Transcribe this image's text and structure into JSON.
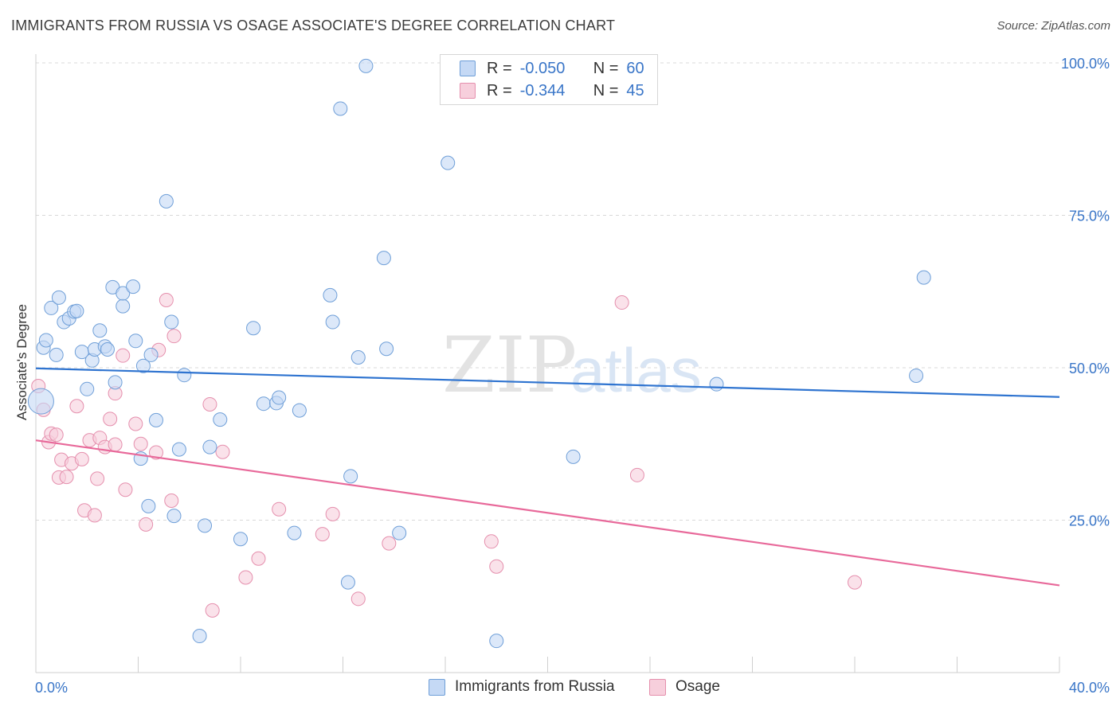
{
  "title": "IMMIGRANTS FROM RUSSIA VS OSAGE ASSOCIATE'S DEGREE CORRELATION CHART",
  "source": "Source: ZipAtlas.com",
  "watermark": {
    "zip": "ZIP",
    "atlas": "atlas"
  },
  "legend_top": {
    "rows": [
      {
        "r_label": "R =",
        "r_value": "-0.050",
        "n_label": "N =",
        "n_value": "60"
      },
      {
        "r_label": "R =",
        "r_value": "-0.344",
        "n_label": "N =",
        "n_value": "45"
      }
    ]
  },
  "legend_bottom": {
    "series1": "Immigrants from Russia",
    "series2": "Osage"
  },
  "colors": {
    "series1_fill": "#c5d9f5",
    "series1_stroke": "#6f9fd8",
    "series1_line": "#2f74d0",
    "series2_fill": "#f7cfdc",
    "series2_stroke": "#e58fad",
    "series2_line": "#e8699a",
    "tick_label": "#3a76c8",
    "grid": "#d8d8d8"
  },
  "chart_data": {
    "type": "scatter",
    "title": "IMMIGRANTS FROM RUSSIA VS OSAGE ASSOCIATE'S DEGREE CORRELATION CHART",
    "xlabel": "",
    "ylabel": "Associate's Degree",
    "xlim": [
      0,
      40
    ],
    "ylim": [
      0,
      100
    ],
    "x_tick_labels": [
      "0.0%",
      "40.0%"
    ],
    "y_ticks": [
      25,
      50,
      75,
      100
    ],
    "y_tick_labels": [
      "25.0%",
      "50.0%",
      "75.0%",
      "100.0%"
    ],
    "series": [
      {
        "name": "Immigrants from Russia",
        "trend": {
          "x": [
            0,
            40
          ],
          "y": [
            49.9,
            45.2
          ]
        },
        "points": [
          [
            0.3,
            53.3
          ],
          [
            0.4,
            54.5
          ],
          [
            0.6,
            59.8
          ],
          [
            0.8,
            52.1
          ],
          [
            0.9,
            61.5
          ],
          [
            1.1,
            57.5
          ],
          [
            1.3,
            58.1
          ],
          [
            1.5,
            59.2
          ],
          [
            1.6,
            59.3
          ],
          [
            1.8,
            52.6
          ],
          [
            2.0,
            46.5
          ],
          [
            2.2,
            51.2
          ],
          [
            2.3,
            53.0
          ],
          [
            2.5,
            56.1
          ],
          [
            2.7,
            53.5
          ],
          [
            2.8,
            53.0
          ],
          [
            3.0,
            63.2
          ],
          [
            3.1,
            47.6
          ],
          [
            3.4,
            60.1
          ],
          [
            3.4,
            62.2
          ],
          [
            3.8,
            63.3
          ],
          [
            3.9,
            54.4
          ],
          [
            4.1,
            35.1
          ],
          [
            4.2,
            50.3
          ],
          [
            4.4,
            27.3
          ],
          [
            4.5,
            52.1
          ],
          [
            4.7,
            41.4
          ],
          [
            5.1,
            77.3
          ],
          [
            5.3,
            57.5
          ],
          [
            5.4,
            25.7
          ],
          [
            5.6,
            36.6
          ],
          [
            5.8,
            48.8
          ],
          [
            6.4,
            6.0
          ],
          [
            6.6,
            24.1
          ],
          [
            6.8,
            37.0
          ],
          [
            7.2,
            41.5
          ],
          [
            8.0,
            21.9
          ],
          [
            8.5,
            56.5
          ],
          [
            8.9,
            44.1
          ],
          [
            9.4,
            44.2
          ],
          [
            9.5,
            45.1
          ],
          [
            10.1,
            22.9
          ],
          [
            10.3,
            43.0
          ],
          [
            11.5,
            61.9
          ],
          [
            11.6,
            57.5
          ],
          [
            12.2,
            14.8
          ],
          [
            12.3,
            32.2
          ],
          [
            12.6,
            51.7
          ],
          [
            11.9,
            92.5
          ],
          [
            12.9,
            99.5
          ],
          [
            13.6,
            68.0
          ],
          [
            13.7,
            53.1
          ],
          [
            14.2,
            22.9
          ],
          [
            16.1,
            83.6
          ],
          [
            18.0,
            5.2
          ],
          [
            21.0,
            35.4
          ],
          [
            26.6,
            47.3
          ],
          [
            34.4,
            48.7
          ],
          [
            34.7,
            64.8
          ],
          [
            0.2,
            44.5
          ]
        ]
      },
      {
        "name": "Osage",
        "trend": {
          "x": [
            0,
            40
          ],
          "y": [
            38.1,
            14.3
          ]
        },
        "points": [
          [
            0.1,
            47.0
          ],
          [
            0.3,
            43.1
          ],
          [
            0.5,
            37.8
          ],
          [
            0.6,
            39.2
          ],
          [
            0.8,
            39.0
          ],
          [
            0.9,
            32.0
          ],
          [
            1.0,
            34.9
          ],
          [
            1.2,
            32.1
          ],
          [
            1.4,
            34.3
          ],
          [
            1.6,
            43.7
          ],
          [
            1.8,
            35.0
          ],
          [
            1.9,
            26.6
          ],
          [
            2.1,
            38.1
          ],
          [
            2.3,
            25.8
          ],
          [
            2.4,
            31.8
          ],
          [
            2.5,
            38.5
          ],
          [
            2.7,
            37.0
          ],
          [
            2.9,
            41.6
          ],
          [
            3.1,
            37.4
          ],
          [
            3.1,
            45.8
          ],
          [
            3.4,
            52.0
          ],
          [
            3.5,
            30.0
          ],
          [
            3.9,
            40.8
          ],
          [
            4.1,
            37.5
          ],
          [
            4.3,
            24.3
          ],
          [
            4.7,
            36.1
          ],
          [
            4.8,
            52.9
          ],
          [
            5.1,
            61.1
          ],
          [
            5.3,
            28.2
          ],
          [
            5.4,
            55.2
          ],
          [
            6.8,
            44.0
          ],
          [
            6.9,
            10.2
          ],
          [
            7.3,
            36.2
          ],
          [
            8.2,
            15.6
          ],
          [
            8.7,
            18.7
          ],
          [
            9.5,
            26.8
          ],
          [
            11.2,
            22.7
          ],
          [
            11.6,
            26.0
          ],
          [
            12.6,
            12.1
          ],
          [
            13.8,
            21.2
          ],
          [
            17.8,
            21.5
          ],
          [
            18.0,
            17.4
          ],
          [
            22.9,
            60.7
          ],
          [
            23.5,
            32.4
          ],
          [
            32.0,
            14.8
          ]
        ]
      }
    ]
  }
}
